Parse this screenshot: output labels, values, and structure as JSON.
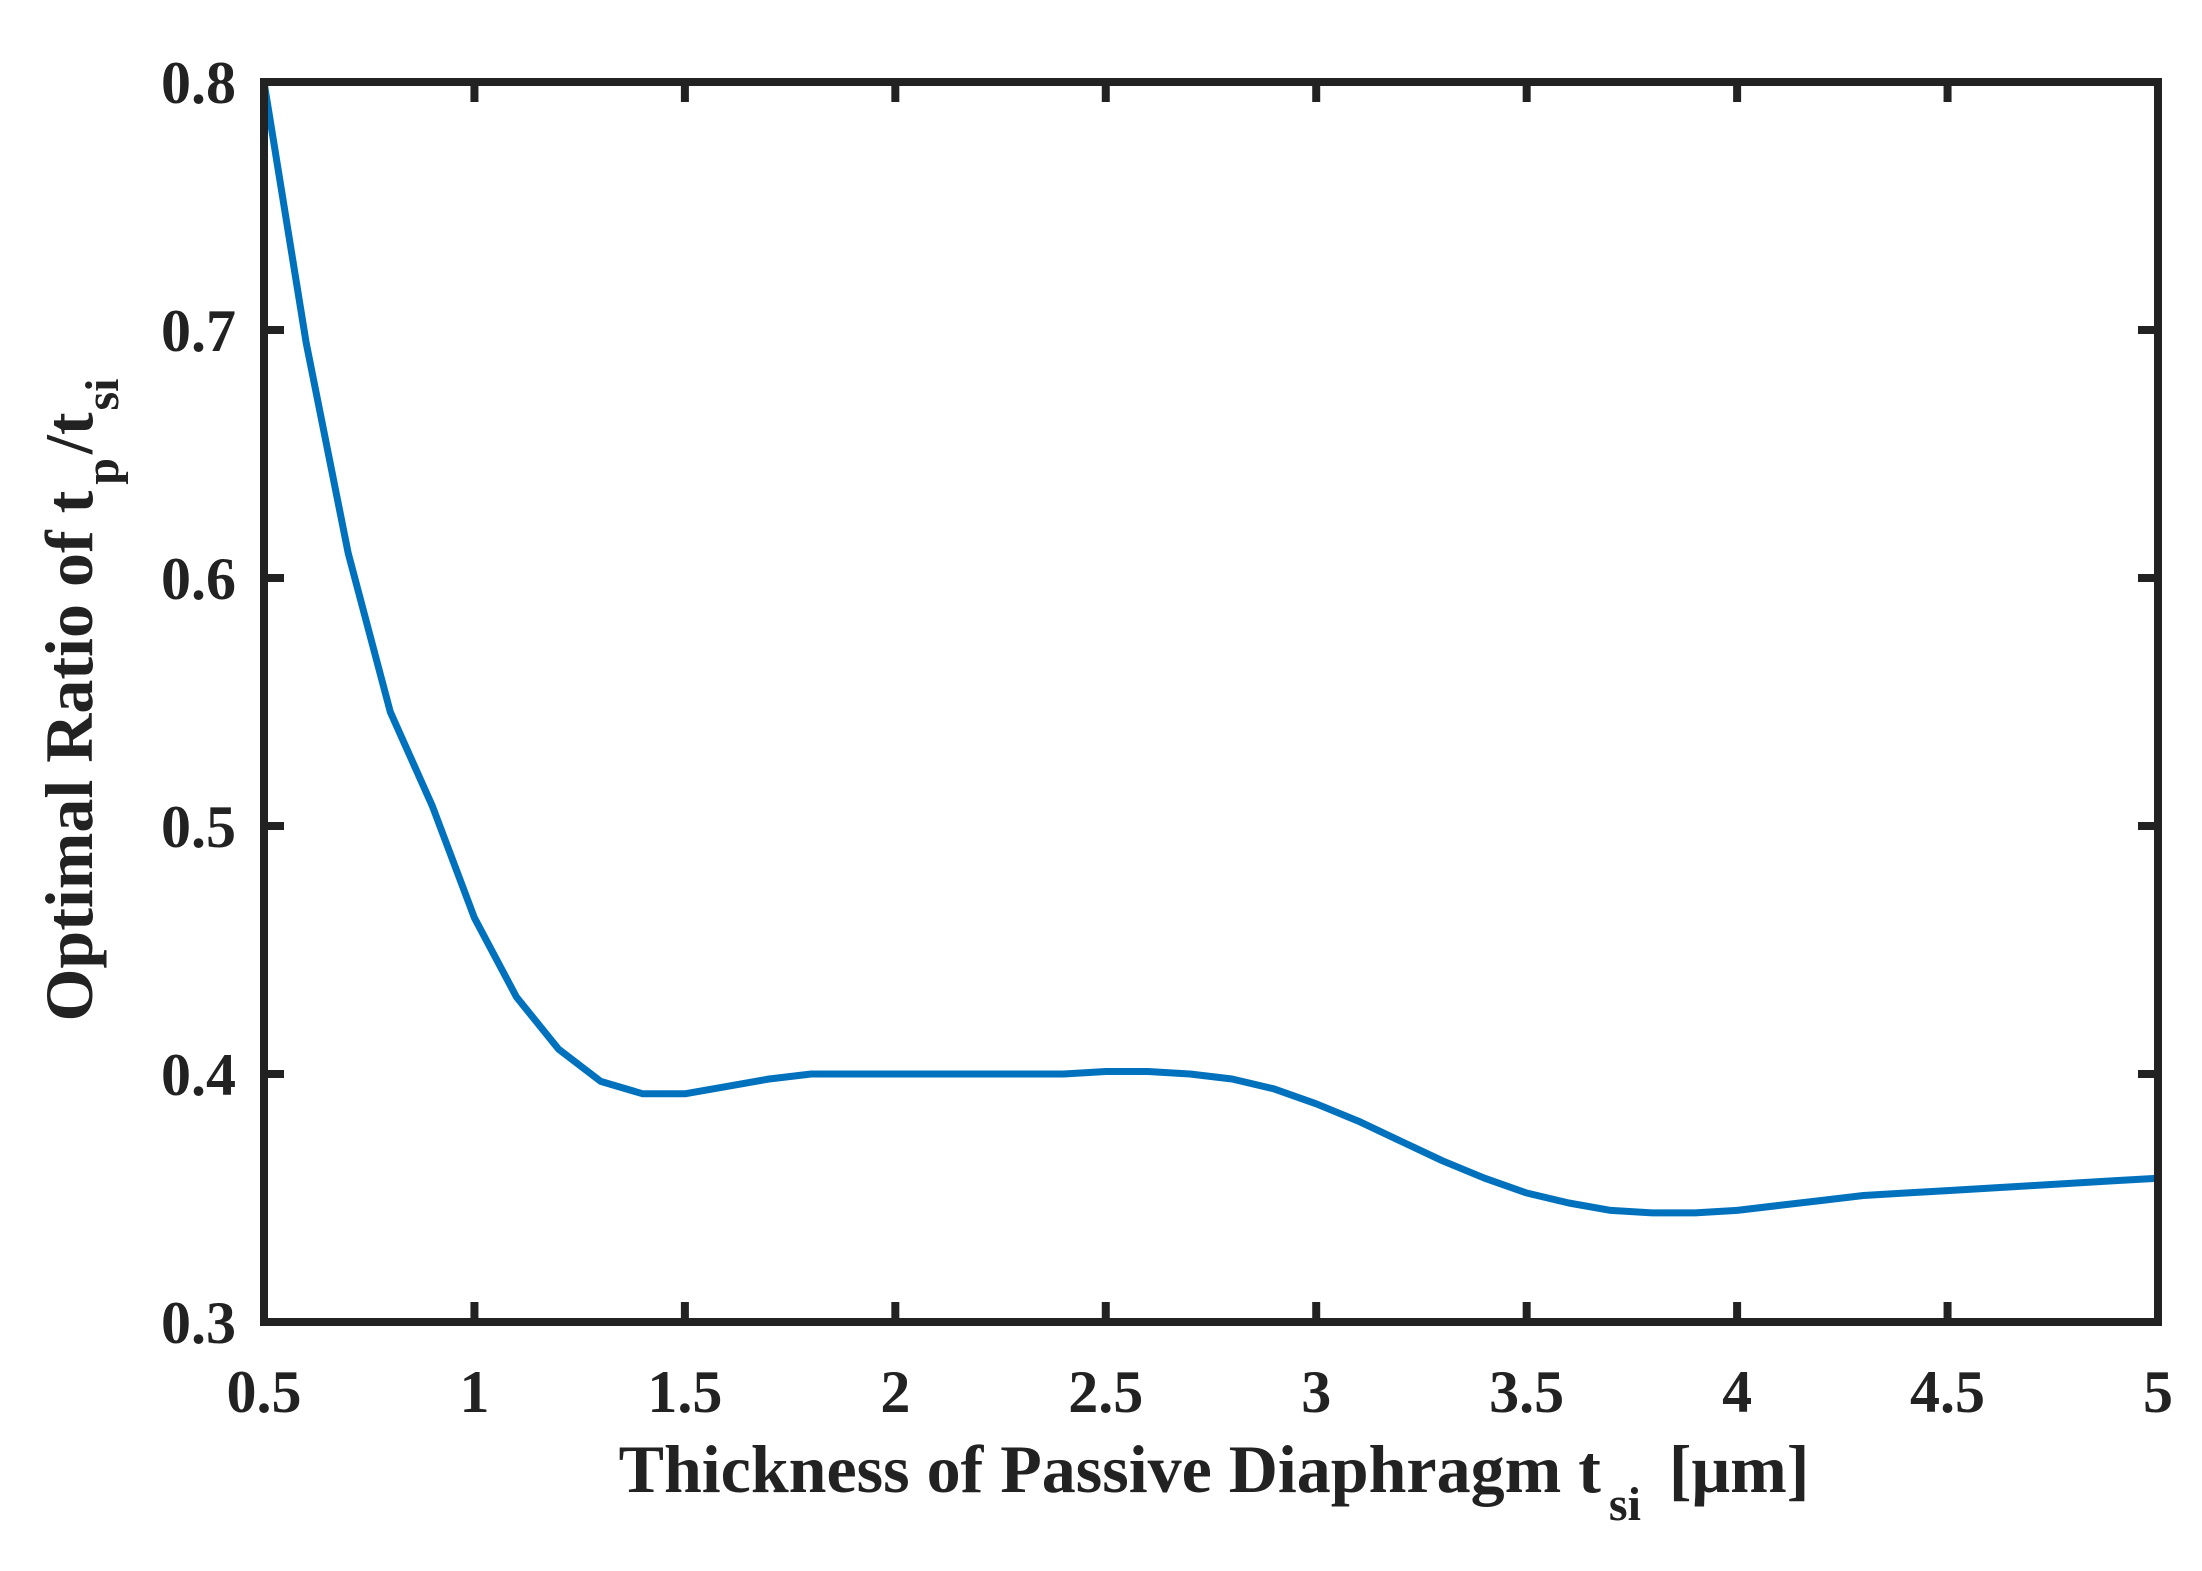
{
  "chart_data": {
    "type": "line",
    "title": "",
    "xlabel": {
      "main": "Thickness of Passive Diaphragm t",
      "sub": "si",
      "suffix": "[μm]"
    },
    "ylabel": {
      "main": "Optimal Ratio of t",
      "sub1": "p",
      "mid": "/t",
      "sub2": "si"
    },
    "xlim": [
      0.5,
      5
    ],
    "ylim": [
      0.3,
      0.8
    ],
    "xticks": [
      0.5,
      1,
      1.5,
      2,
      2.5,
      3,
      3.5,
      4,
      4.5,
      5
    ],
    "xtick_labels": [
      "0.5",
      "1",
      "1.5",
      "2",
      "2.5",
      "3",
      "3.5",
      "4",
      "4.5",
      "5"
    ],
    "yticks": [
      0.3,
      0.4,
      0.5,
      0.6,
      0.7,
      0.8
    ],
    "ytick_labels": [
      "0.3",
      "0.4",
      "0.5",
      "0.6",
      "0.7",
      "0.8"
    ],
    "grid": false,
    "series": [
      {
        "color": "#0072BD",
        "x": [
          0.5,
          0.6,
          0.7,
          0.8,
          0.9,
          1.0,
          1.1,
          1.2,
          1.3,
          1.4,
          1.5,
          1.6,
          1.7,
          1.8,
          1.9,
          2.0,
          2.1,
          2.2,
          2.3,
          2.4,
          2.5,
          2.6,
          2.7,
          2.8,
          2.9,
          3.0,
          3.1,
          3.2,
          3.3,
          3.4,
          3.5,
          3.6,
          3.7,
          3.8,
          3.9,
          4.0,
          4.1,
          4.2,
          4.3,
          4.4,
          4.5,
          4.6,
          4.7,
          4.8,
          4.9,
          5.0
        ],
        "y": [
          0.8,
          0.695,
          0.61,
          0.546,
          0.508,
          0.463,
          0.431,
          0.41,
          0.397,
          0.392,
          0.392,
          0.395,
          0.398,
          0.4,
          0.4,
          0.4,
          0.4,
          0.4,
          0.4,
          0.4,
          0.401,
          0.401,
          0.4,
          0.398,
          0.394,
          0.388,
          0.381,
          0.373,
          0.365,
          0.358,
          0.352,
          0.348,
          0.345,
          0.344,
          0.344,
          0.345,
          0.347,
          0.349,
          0.351,
          0.352,
          0.353,
          0.354,
          0.355,
          0.356,
          0.357,
          0.358
        ]
      }
    ]
  }
}
